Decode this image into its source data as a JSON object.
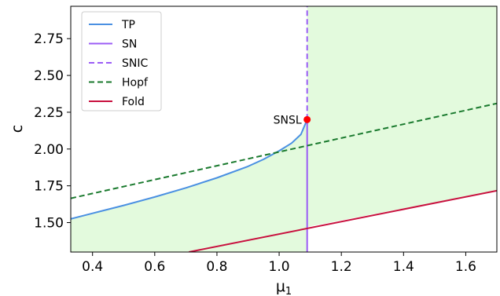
{
  "chart_data": {
    "type": "line",
    "xlabel": "μ",
    "xlabel_sub": "1",
    "ylabel": "c",
    "xlim": [
      0.33,
      1.7
    ],
    "ylim": [
      1.3,
      2.97
    ],
    "xticks": [
      0.4,
      0.6,
      0.8,
      1.0,
      1.2,
      1.4,
      1.6
    ],
    "xtick_labels": [
      "0.4",
      "0.6",
      "0.8",
      "1.0",
      "1.2",
      "1.4",
      "1.6"
    ],
    "yticks": [
      1.5,
      1.75,
      2.0,
      2.25,
      2.5,
      2.75
    ],
    "ytick_labels": [
      "1.50",
      "1.75",
      "2.00",
      "2.25",
      "2.50",
      "2.75"
    ],
    "grid": false,
    "legend_position": "top-left",
    "series": [
      {
        "name": "TP",
        "color": "#4a90e2",
        "dash": "solid",
        "points": [
          [
            0.33,
            1.525
          ],
          [
            0.4,
            1.563
          ],
          [
            0.5,
            1.617
          ],
          [
            0.6,
            1.674
          ],
          [
            0.7,
            1.736
          ],
          [
            0.8,
            1.804
          ],
          [
            0.9,
            1.882
          ],
          [
            0.95,
            1.93
          ],
          [
            1.0,
            1.988
          ],
          [
            1.04,
            2.04
          ],
          [
            1.07,
            2.1
          ],
          [
            1.09,
            2.2
          ]
        ]
      },
      {
        "name": "SN",
        "color": "#9b5cf6",
        "dash": "solid",
        "points": [
          [
            1.09,
            1.3
          ],
          [
            1.09,
            2.2
          ]
        ]
      },
      {
        "name": "SNIC",
        "color": "#9b5cf6",
        "dash": "dashed",
        "points": [
          [
            1.09,
            2.2
          ],
          [
            1.09,
            2.97
          ]
        ]
      },
      {
        "name": "Hopf",
        "color": "#1a7a2e",
        "dash": "dashed",
        "points": [
          [
            0.33,
            1.665
          ],
          [
            1.7,
            2.31
          ]
        ]
      },
      {
        "name": "Fold",
        "color": "#c8103e",
        "dash": "solid",
        "points": [
          [
            0.71,
            1.3
          ],
          [
            1.7,
            1.717
          ]
        ]
      }
    ],
    "shaded_regions": [
      {
        "color": "#e3fadd",
        "polygon": [
          [
            0.33,
            1.525
          ],
          [
            0.4,
            1.563
          ],
          [
            0.5,
            1.617
          ],
          [
            0.6,
            1.674
          ],
          [
            0.7,
            1.736
          ],
          [
            0.8,
            1.804
          ],
          [
            0.9,
            1.882
          ],
          [
            0.95,
            1.93
          ],
          [
            1.0,
            1.988
          ],
          [
            1.04,
            2.04
          ],
          [
            1.07,
            2.1
          ],
          [
            1.09,
            2.2
          ],
          [
            1.09,
            1.3
          ],
          [
            0.33,
            1.3
          ]
        ]
      },
      {
        "color": "#e3fadd",
        "polygon": [
          [
            1.09,
            2.97
          ],
          [
            1.7,
            2.97
          ],
          [
            1.7,
            1.717
          ],
          [
            1.09,
            1.4711
          ],
          [
            1.09,
            2.97
          ]
        ]
      }
    ],
    "annotations": [
      {
        "text": "SNSL",
        "x": 1.09,
        "y": 2.2,
        "marker_color": "#ff0000"
      }
    ]
  }
}
